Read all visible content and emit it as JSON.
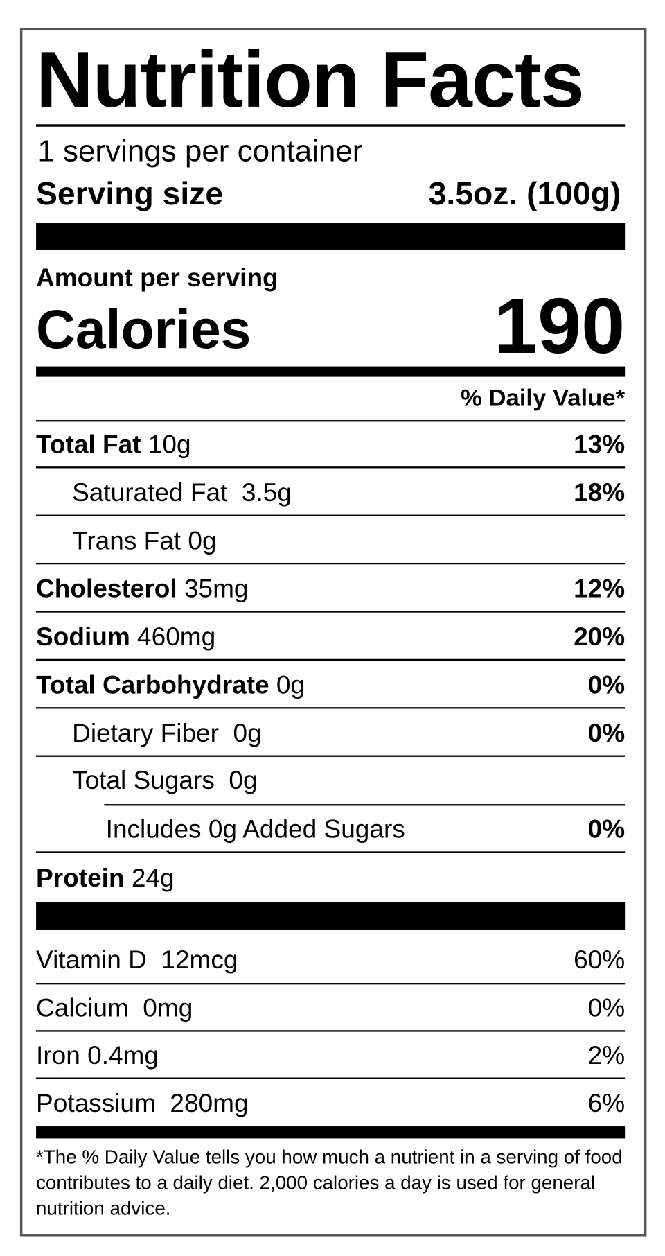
{
  "title": "Nutrition Facts",
  "servings_per_container": "1 servings per container",
  "serving_size": {
    "label": "Serving size",
    "value": "3.5oz. (100g)"
  },
  "amount_per_serving": "Amount per serving",
  "calories": {
    "label": "Calories",
    "value": "190"
  },
  "daily_value_header": "% Daily Value*",
  "nutrients": [
    {
      "name": "Total Fat",
      "amount": "10g",
      "dv": "13%"
    },
    {
      "name": "Saturated Fat",
      "amount": "3.5g",
      "dv": "18%"
    },
    {
      "name": "Trans Fat",
      "amount": "0g"
    },
    {
      "name": "Cholesterol",
      "amount": "35mg",
      "dv": "12%"
    },
    {
      "name": "Sodium",
      "amount": "460mg",
      "dv": "20%"
    },
    {
      "name": "Total Carbohydrate",
      "amount": "0g",
      "dv": "0%"
    },
    {
      "name": "Dietary Fiber",
      "amount": "0g",
      "dv": "0%"
    },
    {
      "name": "Total Sugars",
      "amount": "0g"
    },
    {
      "name": "Includes 0g Added Sugars",
      "dv": "0%"
    },
    {
      "name": "Protein",
      "amount": "24g"
    }
  ],
  "vitamins": [
    {
      "name": "Vitamin D",
      "amount": "12mcg",
      "dv": "60%"
    },
    {
      "name": "Calcium",
      "amount": "0mg",
      "dv": "0%"
    },
    {
      "name": "Iron",
      "amount": "0.4mg",
      "dv": "2%"
    },
    {
      "name": "Potassium",
      "amount": "280mg",
      "dv": "6%"
    }
  ],
  "footnote": "*The % Daily Value tells you how much a nutrient in a serving of food contributes to a daily diet. 2,000 calories a day is used for general nutrition advice."
}
